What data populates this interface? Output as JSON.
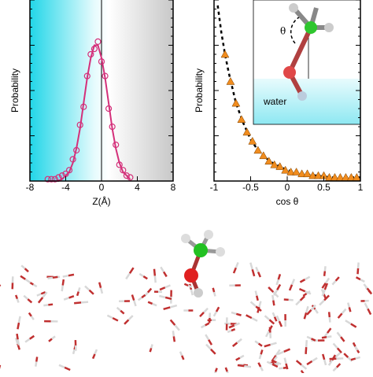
{
  "chart_data": [
    {
      "type": "scatter",
      "xlabel": "Z(Å)",
      "ylabel": "Probability",
      "xlim": [
        -8,
        8
      ],
      "ylim": [
        0,
        1
      ],
      "xticks": [
        -8,
        -4,
        0,
        4,
        8
      ],
      "zero_line": true,
      "series": [
        {
          "kind": "points",
          "marker": "circle",
          "color": "#d4307a",
          "x": [
            -6,
            -5.6,
            -5.2,
            -4.8,
            -4.4,
            -4,
            -3.6,
            -3.2,
            -2.8,
            -2.4,
            -2,
            -1.6,
            -1.2,
            -0.8,
            -0.4,
            0,
            0.4,
            0.8,
            1.2,
            1.6,
            2,
            2.4,
            2.8,
            3.2
          ],
          "values": [
            0.01,
            0.01,
            0.01,
            0.02,
            0.03,
            0.04,
            0.06,
            0.12,
            0.17,
            0.31,
            0.41,
            0.58,
            0.7,
            0.73,
            0.77,
            0.66,
            0.58,
            0.4,
            0.3,
            0.2,
            0.09,
            0.06,
            0.03,
            0.02
          ]
        },
        {
          "kind": "line",
          "dashed": false,
          "color": "#d4307a",
          "x": [
            -6,
            -5.6,
            -5.2,
            -4.8,
            -4.4,
            -4,
            -3.6,
            -3.2,
            -2.8,
            -2.4,
            -2,
            -1.6,
            -1.2,
            -0.8,
            -0.4,
            0,
            0.4,
            0.8,
            1.2,
            1.6,
            2,
            2.4,
            2.8,
            3.2
          ],
          "values": [
            0,
            0,
            0,
            0,
            0.01,
            0.03,
            0.05,
            0.1,
            0.18,
            0.29,
            0.43,
            0.57,
            0.68,
            0.75,
            0.75,
            0.68,
            0.57,
            0.43,
            0.29,
            0.18,
            0.1,
            0.05,
            0.03,
            0.01
          ]
        }
      ]
    },
    {
      "type": "scatter",
      "xlabel": "cos θ",
      "ylabel": "Probability",
      "xlim": [
        -1,
        1
      ],
      "ylim": [
        0,
        1
      ],
      "xticks": [
        -1,
        -0.5,
        0,
        0.5,
        1
      ],
      "annotations": [
        "water",
        "θ"
      ],
      "series": [
        {
          "kind": "line",
          "dashed": true,
          "color": "#000000",
          "x": [
            -0.95,
            -0.9,
            -0.85,
            -0.8,
            -0.7,
            -0.6,
            -0.5,
            -0.4,
            -0.3,
            -0.2,
            -0.1,
            0,
            0.2,
            0.4,
            0.6,
            0.8,
            1
          ],
          "values": [
            0.97,
            0.82,
            0.7,
            0.6,
            0.43,
            0.32,
            0.23,
            0.17,
            0.13,
            0.1,
            0.08,
            0.06,
            0.04,
            0.03,
            0.02,
            0.02,
            0.02
          ]
        },
        {
          "kind": "points",
          "marker": "triangle",
          "color": "#f08c1e",
          "x": [
            -0.85,
            -0.775,
            -0.7,
            -0.625,
            -0.55,
            -0.475,
            -0.4,
            -0.325,
            -0.25,
            -0.175,
            -0.1,
            -0.025,
            0.05,
            0.125,
            0.2,
            0.275,
            0.35,
            0.425,
            0.5,
            0.575,
            0.65,
            0.725,
            0.8,
            0.875,
            0.95
          ],
          "values": [
            0.7,
            0.55,
            0.43,
            0.34,
            0.27,
            0.22,
            0.17,
            0.14,
            0.11,
            0.09,
            0.08,
            0.06,
            0.05,
            0.05,
            0.04,
            0.04,
            0.03,
            0.03,
            0.03,
            0.02,
            0.02,
            0.02,
            0.02,
            0.02,
            0.02
          ]
        }
      ]
    }
  ]
}
